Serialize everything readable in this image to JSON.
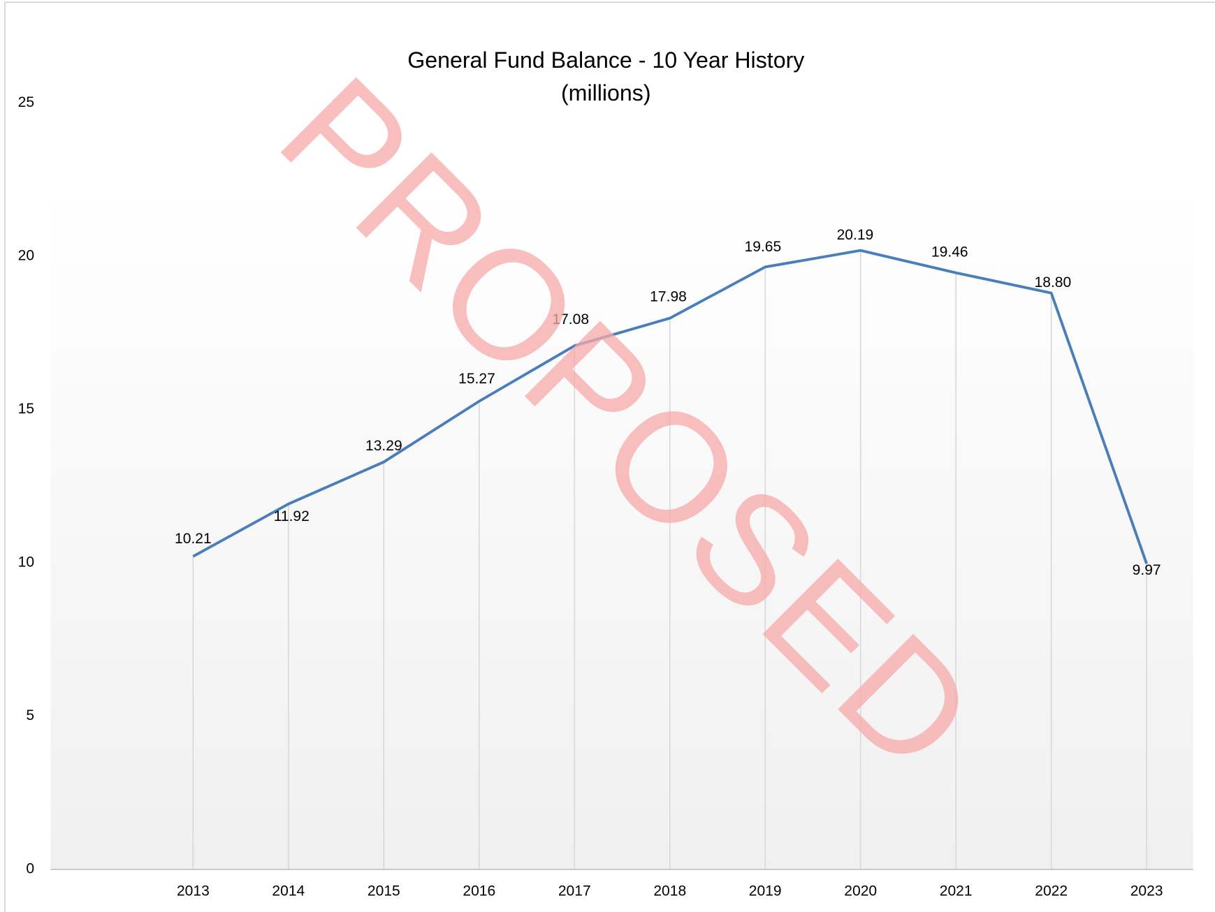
{
  "chart_data": {
    "type": "line",
    "title": "General Fund Balance - 10 Year History",
    "subtitle": "(millions)",
    "watermark": "PROPOSED",
    "categories": [
      "2013",
      "2014",
      "2015",
      "2016",
      "2017",
      "2018",
      "2019",
      "2020",
      "2021",
      "2022",
      "2023"
    ],
    "series": [
      {
        "name": "General Fund Balance",
        "color": "#4a7ebb",
        "values": [
          10.21,
          11.92,
          13.29,
          15.27,
          17.08,
          17.98,
          19.65,
          20.19,
          19.46,
          18.8,
          9.97
        ],
        "value_labels": [
          "10.21",
          "11.92",
          "13.29",
          "15.27",
          "17.08",
          "17.98",
          "19.65",
          "20.19",
          "19.46",
          "18.80",
          "9.97"
        ]
      }
    ],
    "ylim": [
      0,
      25
    ],
    "yticks": [
      0,
      5,
      10,
      15,
      20,
      25
    ],
    "drop_lines": true
  }
}
